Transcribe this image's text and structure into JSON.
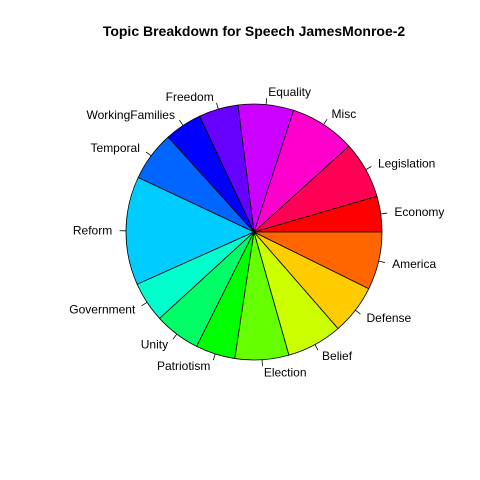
{
  "chart_data": {
    "type": "pie",
    "title": "Topic Breakdown for Speech JamesMonroe-2",
    "slices": [
      {
        "label": "Economy",
        "value": 4.5,
        "color": "#ff0000"
      },
      {
        "label": "Legislation",
        "value": 7.2,
        "color": "#ff0055"
      },
      {
        "label": "Misc",
        "value": 8.3,
        "color": "#ff00cc"
      },
      {
        "label": "Equality",
        "value": 7.0,
        "color": "#cc00ff"
      },
      {
        "label": "Freedom",
        "value": 5.0,
        "color": "#6600ff"
      },
      {
        "label": "WorkingFamilies",
        "value": 4.7,
        "color": "#0000ff"
      },
      {
        "label": "Temporal",
        "value": 6.3,
        "color": "#0066ff"
      },
      {
        "label": "Reform",
        "value": 13.7,
        "color": "#00ccff"
      },
      {
        "label": "Government",
        "value": 5.1,
        "color": "#00ffcc"
      },
      {
        "label": "Unity",
        "value": 5.8,
        "color": "#00ff66"
      },
      {
        "label": "Patriotism",
        "value": 5.0,
        "color": "#00ff00"
      },
      {
        "label": "Election",
        "value": 6.8,
        "color": "#66ff00"
      },
      {
        "label": "Belief",
        "value": 7.0,
        "color": "#ccff00"
      },
      {
        "label": "Defense",
        "value": 6.3,
        "color": "#ffcc00"
      },
      {
        "label": "America",
        "value": 7.3,
        "color": "#ff6600"
      }
    ]
  }
}
